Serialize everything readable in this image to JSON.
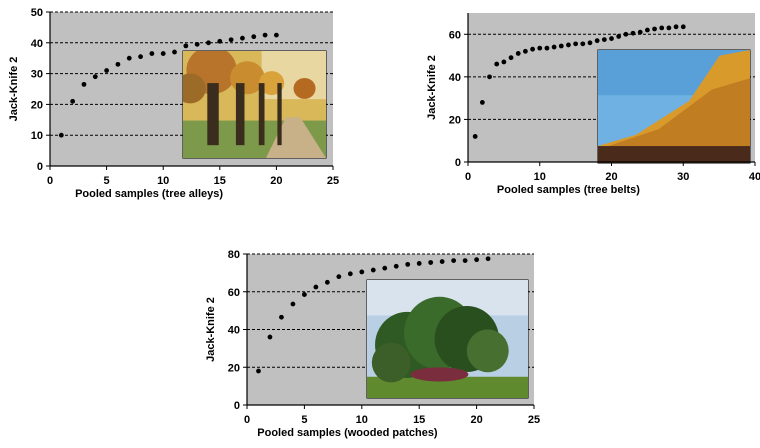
{
  "chart_data": [
    {
      "type": "scatter",
      "xlabel": "Pooled samples (tree alleys)",
      "ylabel": "Jack-Knife 2",
      "xlim": [
        0,
        25
      ],
      "ylim": [
        0,
        50
      ],
      "xticks": [
        0,
        5,
        10,
        15,
        20,
        25
      ],
      "yticks": [
        0,
        10,
        20,
        30,
        40,
        50
      ],
      "grid": "dashed horizontal",
      "inset_photo": "tree-alley",
      "series": [
        {
          "x": [
            1,
            2,
            3,
            4,
            5,
            6,
            7,
            8,
            9,
            10,
            11,
            12,
            13,
            14,
            15,
            16,
            17,
            18,
            19,
            20
          ],
          "y": [
            10,
            21,
            26.5,
            29,
            31,
            33,
            35,
            35.5,
            36.5,
            36.5,
            37,
            39,
            39.5,
            40,
            40.5,
            41,
            41.5,
            42,
            42.5,
            42.5
          ]
        }
      ]
    },
    {
      "type": "scatter",
      "xlabel": "Pooled samples (tree belts)",
      "ylabel": "Jack-Knife 2",
      "xlim": [
        0,
        40
      ],
      "ylim": [
        0,
        70
      ],
      "xticks": [
        0,
        10,
        20,
        30,
        40
      ],
      "yticks": [
        0,
        20,
        40,
        60
      ],
      "grid": "dashed horizontal",
      "inset_photo": "tree-belt",
      "series": [
        {
          "x": [
            1,
            2,
            3,
            4,
            5,
            6,
            7,
            8,
            9,
            10,
            11,
            12,
            13,
            14,
            15,
            16,
            17,
            18,
            19,
            20,
            21,
            22,
            23,
            24,
            25,
            26,
            27,
            28,
            29,
            30
          ],
          "y": [
            12,
            28,
            40,
            46,
            47,
            49,
            51,
            52,
            53,
            53.5,
            53.5,
            54,
            54.5,
            55,
            55.5,
            55.5,
            56,
            57,
            57.5,
            58,
            59,
            60,
            60.5,
            61,
            62,
            62.5,
            63,
            63,
            63.5,
            63.5
          ]
        }
      ]
    },
    {
      "type": "scatter",
      "xlabel": "Pooled samples (wooded patches)",
      "ylabel": "Jack-Knife 2",
      "xlim": [
        0,
        25
      ],
      "ylim": [
        0,
        80
      ],
      "xticks": [
        0,
        5,
        10,
        15,
        20,
        25
      ],
      "yticks": [
        0,
        20,
        40,
        60,
        80
      ],
      "grid": "dashed horizontal",
      "inset_photo": "wooded-patch",
      "series": [
        {
          "x": [
            1,
            2,
            3,
            4,
            5,
            6,
            7,
            8,
            9,
            10,
            11,
            12,
            13,
            14,
            15,
            16,
            17,
            18,
            19,
            20,
            21
          ],
          "y": [
            18,
            36,
            46.5,
            53.5,
            58.5,
            62.5,
            65,
            68,
            69.5,
            70.5,
            71.5,
            72.5,
            73.5,
            74.5,
            75,
            75.5,
            76,
            76.5,
            76.5,
            77,
            77.5
          ]
        }
      ]
    }
  ],
  "colors": {
    "plot_bg": "#c0c0c0",
    "marker": "#000000",
    "grid": "#000000"
  }
}
